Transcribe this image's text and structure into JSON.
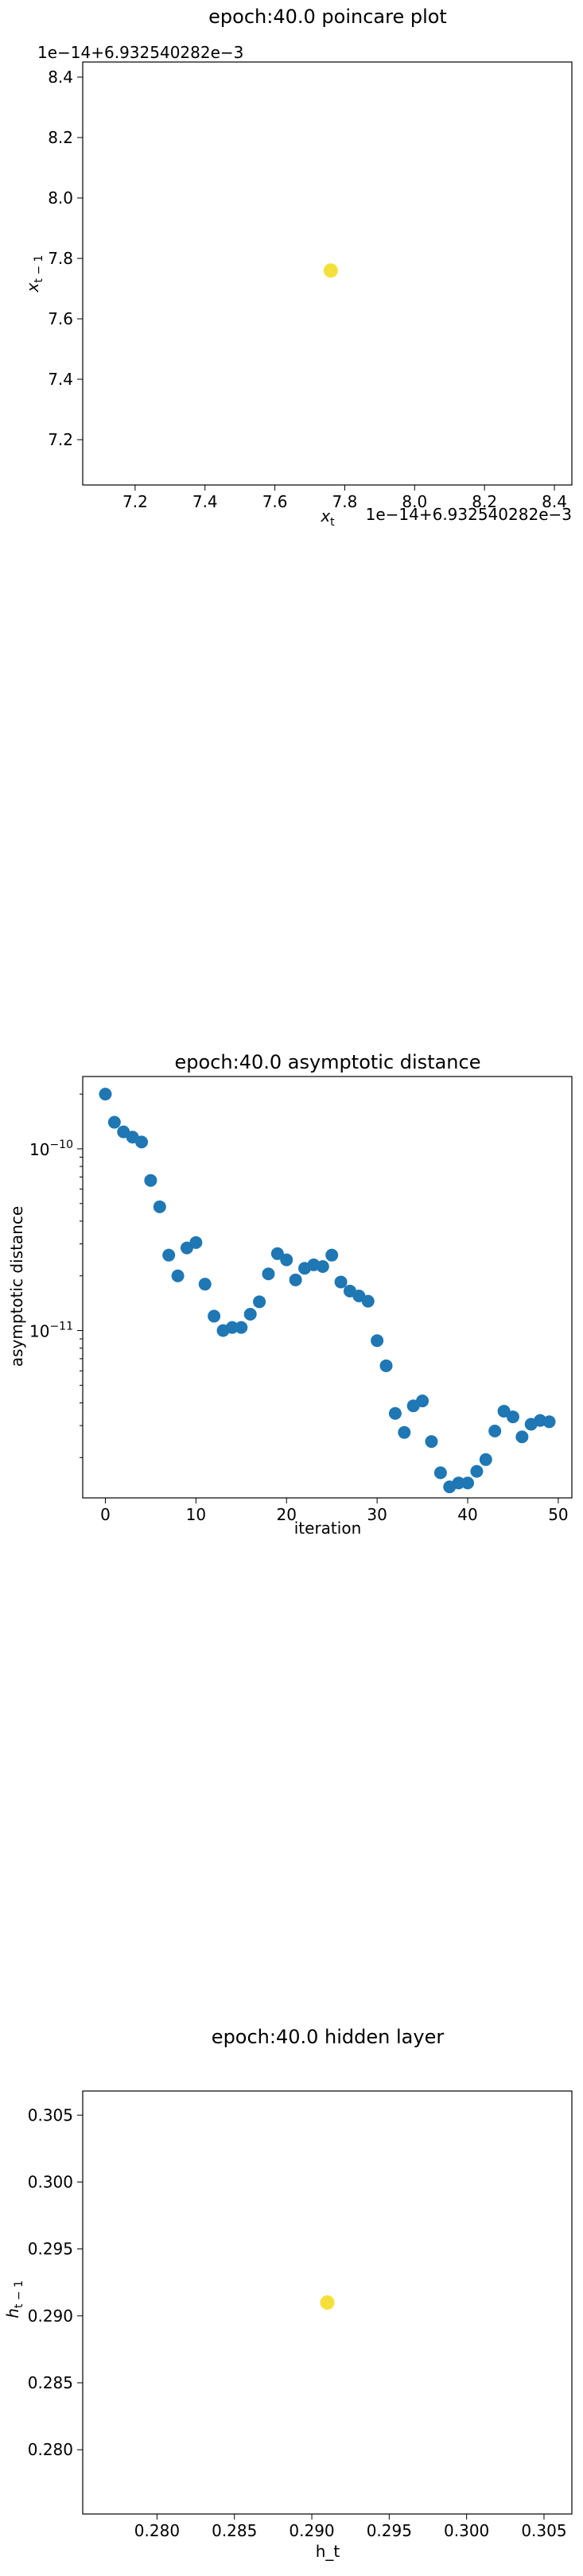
{
  "chart_data": [
    {
      "type": "scatter",
      "title": "epoch:40.0 poincare plot",
      "xlabel": "x_t",
      "ylabel": "x_{t-1}",
      "x_offset_text": "1e−14+6.932540282e−3",
      "y_offset_text": "1e−14+6.932540282e−3",
      "xlim": [
        7.05,
        8.45
      ],
      "ylim": [
        7.05,
        8.45
      ],
      "xticks": [
        7.2,
        7.4,
        7.6,
        7.8,
        8.0,
        8.2,
        8.4
      ],
      "yticks": [
        7.2,
        7.4,
        7.6,
        7.8,
        8.0,
        8.2,
        8.4
      ],
      "tick_labels": [
        "7.2",
        "7.4",
        "7.6",
        "7.8",
        "8.0",
        "8.2",
        "8.4"
      ],
      "marker_color": "#f5e03b",
      "points": [
        {
          "x": 7.76,
          "y": 7.76
        }
      ]
    },
    {
      "type": "scatter",
      "title": "epoch:40.0 asymptotic distance",
      "xlabel": "iteration",
      "ylabel": "asymptotic distance",
      "y_scale": "log",
      "xlim": [
        -2.5,
        51.5
      ],
      "ylim": [
        1.2e-12,
        2.5e-10
      ],
      "xticks": [
        0,
        10,
        20,
        30,
        40,
        50
      ],
      "x_tick_labels": [
        "0",
        "10",
        "20",
        "30",
        "40",
        "50"
      ],
      "yticks": [
        1e-10,
        1e-11
      ],
      "y_tick_label_base": "10",
      "y_tick_label_exponents": [
        "−10",
        "−11"
      ],
      "marker_color": "#1f77b4",
      "x": [
        0,
        1,
        2,
        3,
        4,
        5,
        6,
        7,
        8,
        9,
        10,
        11,
        12,
        13,
        14,
        15,
        16,
        17,
        18,
        19,
        20,
        21,
        22,
        23,
        24,
        25,
        26,
        27,
        28,
        29,
        30,
        31,
        32,
        33,
        34,
        35,
        36,
        37,
        38,
        39,
        40,
        41,
        42,
        43,
        44,
        45,
        46,
        47,
        48,
        49
      ],
      "values": [
        2e-10,
        1.4e-10,
        1.24e-10,
        1.16e-10,
        1.09e-10,
        6.7e-11,
        4.8e-11,
        2.6e-11,
        2e-11,
        2.85e-11,
        3.05e-11,
        1.8e-11,
        1.2e-11,
        1e-11,
        1.04e-11,
        1.04e-11,
        1.23e-11,
        1.44e-11,
        2.05e-11,
        2.65e-11,
        2.45e-11,
        1.9e-11,
        2.2e-11,
        2.3e-11,
        2.25e-11,
        2.6e-11,
        1.85e-11,
        1.65e-11,
        1.55e-11,
        1.45e-11,
        8.8e-12,
        6.4e-12,
        3.5e-12,
        2.75e-12,
        3.85e-12,
        4.1e-12,
        2.45e-12,
        1.65e-12,
        1.38e-12,
        1.45e-12,
        1.45e-12,
        1.68e-12,
        1.95e-12,
        2.8e-12,
        3.6e-12,
        3.35e-12,
        2.6e-12,
        3.05e-12,
        3.2e-12,
        3.15e-12
      ]
    },
    {
      "type": "scatter",
      "title": "epoch:40.0 hidden layer",
      "xlabel": "h_t",
      "ylabel": "h_{t-1}",
      "xlim": [
        0.2752,
        0.3068
      ],
      "ylim": [
        0.2752,
        0.3068
      ],
      "xticks": [
        0.28,
        0.285,
        0.29,
        0.295,
        0.3,
        0.305
      ],
      "x_tick_labels": [
        "0.280",
        "0.285",
        "0.290",
        "0.295",
        "0.300",
        "0.305"
      ],
      "yticks": [
        0.28,
        0.285,
        0.29,
        0.295,
        0.3,
        0.305
      ],
      "y_tick_labels": [
        "0.280",
        "0.285",
        "0.290",
        "0.295",
        "0.300",
        "0.305"
      ],
      "marker_color": "#f5e03b",
      "points": [
        {
          "x": 0.291,
          "y": 0.291
        }
      ]
    }
  ]
}
